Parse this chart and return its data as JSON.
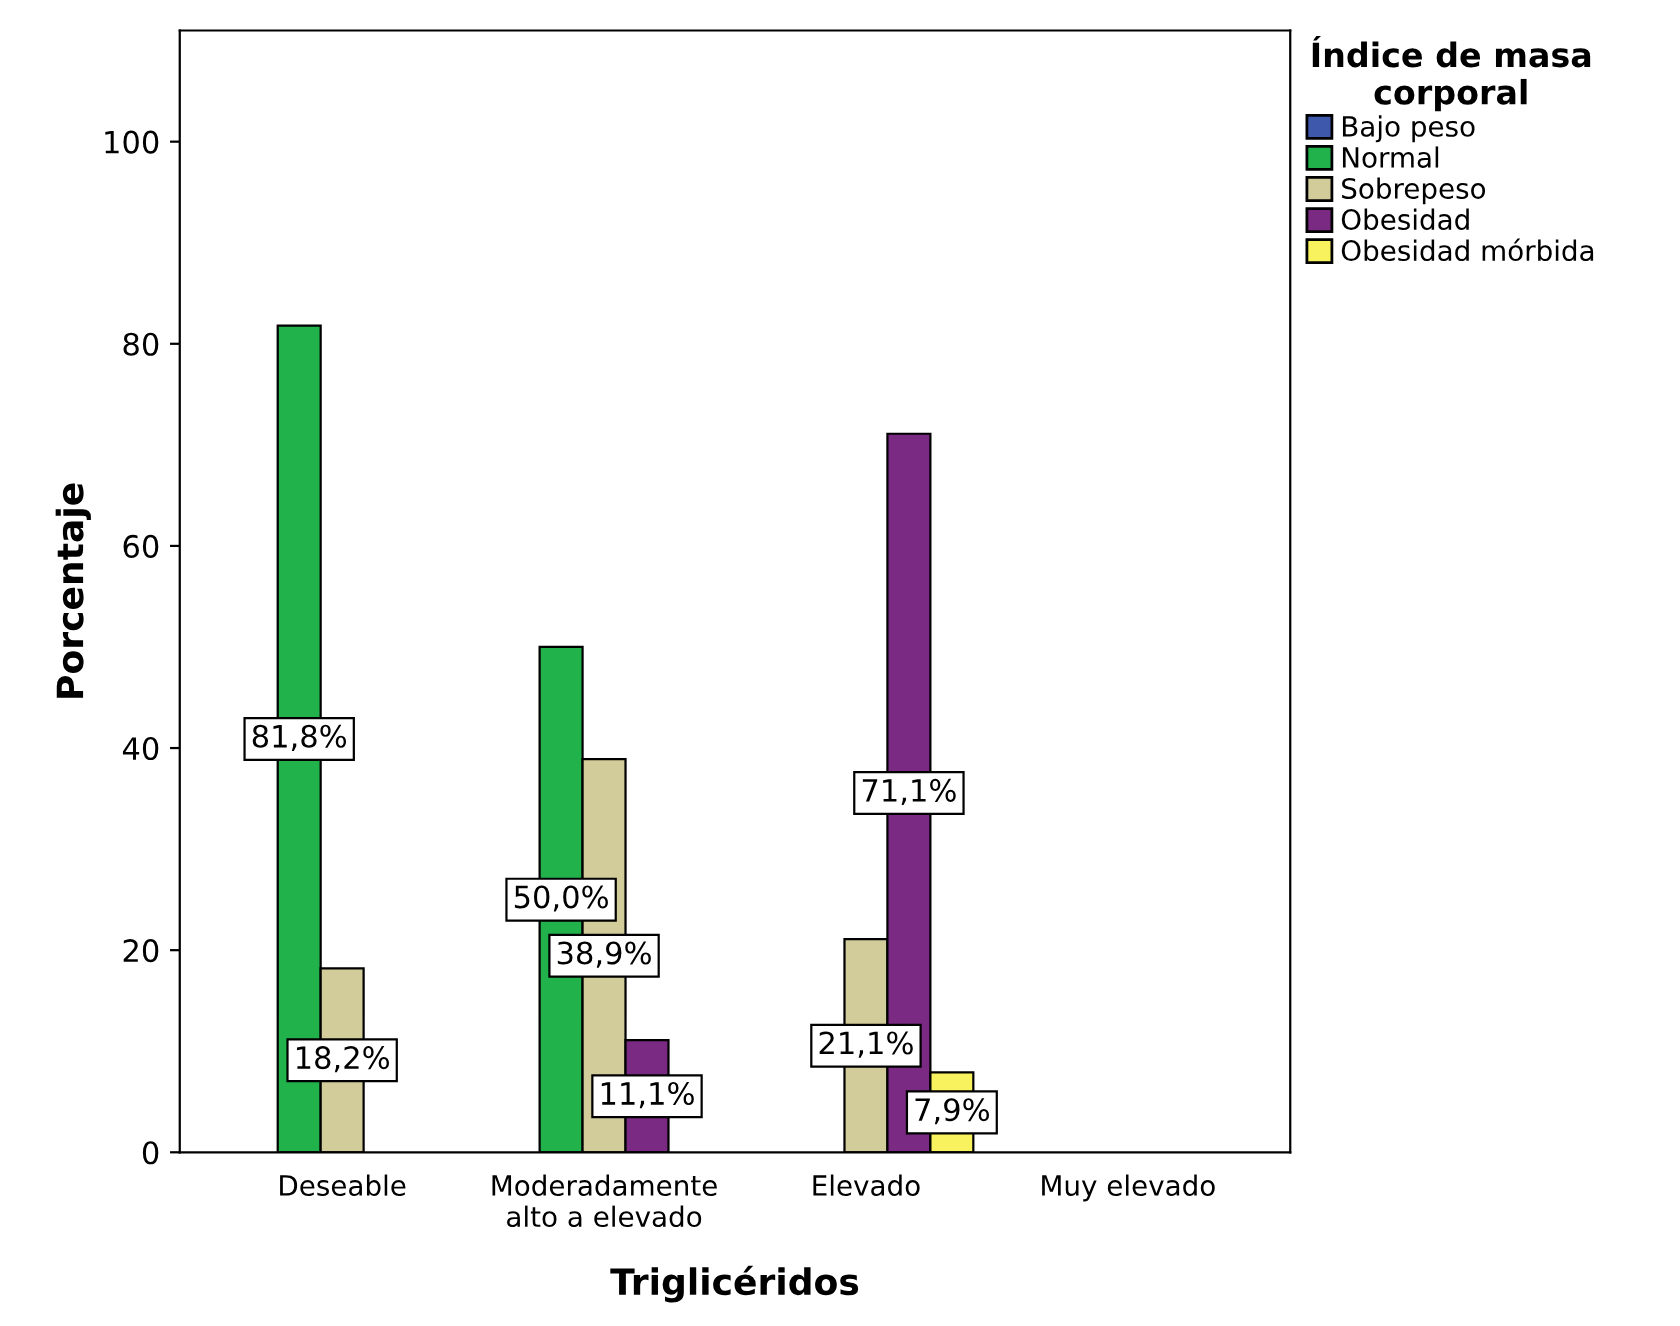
{
  "chart_data": {
    "type": "bar",
    "xlabel": "Triglicéridos",
    "ylabel": "Porcentaje",
    "legend_title": "Índice de masa\ncorporal",
    "legend": "right",
    "categories": [
      "Deseable",
      "Moderadamente\nalto a elevado",
      "Elevado",
      "Muy elevado"
    ],
    "ylim": [
      0,
      111
    ],
    "yticks": [
      0,
      20,
      40,
      60,
      80,
      100
    ],
    "grid": false,
    "series": [
      {
        "name": "Bajo peso",
        "color": "#3e58ac",
        "values": [
          null,
          null,
          null,
          null
        ]
      },
      {
        "name": "Normal",
        "color": "#21b24c",
        "values": [
          81.8,
          50.0,
          null,
          null
        ],
        "value_labels": [
          "81,8%",
          "50,0%",
          null,
          null
        ]
      },
      {
        "name": "Sobrepeso",
        "color": "#d2cc9b",
        "values": [
          18.2,
          38.9,
          21.1,
          null
        ],
        "value_labels": [
          "18,2%",
          "38,9%",
          "21,1%",
          null
        ]
      },
      {
        "name": "Obesidad",
        "color": "#7a2a82",
        "values": [
          null,
          11.1,
          71.1,
          null
        ],
        "value_labels": [
          null,
          "11,1%",
          "71,1%",
          null
        ]
      },
      {
        "name": "Obesidad mórbida",
        "color": "#f8f25e",
        "values": [
          null,
          null,
          7.9,
          null
        ],
        "value_labels": [
          null,
          null,
          "7,9%",
          null
        ]
      }
    ]
  }
}
